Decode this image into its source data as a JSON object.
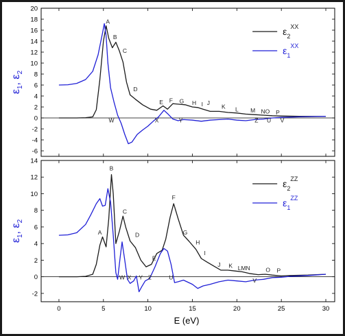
{
  "xlabel": "E (eV)",
  "x_ticks": [
    "0",
    "5",
    "10",
    "15",
    "20",
    "25",
    "30"
  ],
  "chart_data": [
    {
      "type": "line",
      "xlim": [
        -2,
        31
      ],
      "ylim": [
        -7,
        20
      ],
      "yticks": [
        -6,
        -4,
        -2,
        0,
        2,
        4,
        6,
        8,
        10,
        12,
        14,
        16,
        18,
        20
      ],
      "ylabel": "ε1, ε2",
      "grid": false,
      "legend_position": "top-right",
      "legend": [
        {
          "series": "eps2",
          "base": "ε",
          "sub": "2",
          "sup": "XX",
          "color": "#1a1a1a"
        },
        {
          "series": "eps1",
          "base": "ε",
          "sub": "1",
          "sup": "XX",
          "color": "#1f1fd6"
        }
      ],
      "series": [
        {
          "id": "eps2",
          "color": "#1a1a1a",
          "points": [
            [
              0,
              0
            ],
            [
              2,
              0
            ],
            [
              3,
              0.05
            ],
            [
              3.8,
              0.2
            ],
            [
              4.2,
              1.5
            ],
            [
              4.6,
              7
            ],
            [
              5,
              14
            ],
            [
              5.3,
              16.8
            ],
            [
              5.6,
              14.5
            ],
            [
              6,
              12.8
            ],
            [
              6.4,
              13.8
            ],
            [
              6.8,
              12.2
            ],
            [
              7.2,
              10.2
            ],
            [
              7.6,
              6.5
            ],
            [
              8,
              4.2
            ],
            [
              8.6,
              3.4
            ],
            [
              9.4,
              2.4
            ],
            [
              10.3,
              1.6
            ],
            [
              11,
              1.4
            ],
            [
              11.7,
              2.2
            ],
            [
              12.2,
              1.6
            ],
            [
              12.8,
              2.6
            ],
            [
              13.5,
              2.5
            ],
            [
              14.2,
              2.4
            ],
            [
              15,
              2
            ],
            [
              15.6,
              1.9
            ],
            [
              16.2,
              1.6
            ],
            [
              17,
              1.2
            ],
            [
              18,
              1.2
            ],
            [
              19,
              1.0
            ],
            [
              20,
              0.9
            ],
            [
              21,
              0.7
            ],
            [
              22,
              0.6
            ],
            [
              23,
              0.5
            ],
            [
              24,
              0.4
            ],
            [
              25,
              0.35
            ],
            [
              27,
              0.3
            ],
            [
              30,
              0.3
            ]
          ]
        },
        {
          "id": "eps1",
          "color": "#1f1fd6",
          "points": [
            [
              0,
              6
            ],
            [
              1,
              6.05
            ],
            [
              2,
              6.3
            ],
            [
              3,
              7
            ],
            [
              3.8,
              8.5
            ],
            [
              4.4,
              11.5
            ],
            [
              4.9,
              15.5
            ],
            [
              5.1,
              17.2
            ],
            [
              5.3,
              15
            ],
            [
              5.5,
              10
            ],
            [
              5.8,
              5.5
            ],
            [
              6.2,
              2.8
            ],
            [
              6.6,
              0.5
            ],
            [
              7,
              -1
            ],
            [
              7.4,
              -3
            ],
            [
              7.8,
              -4.7
            ],
            [
              8.2,
              -4.4
            ],
            [
              8.8,
              -3
            ],
            [
              9.4,
              -2.2
            ],
            [
              10,
              -1.5
            ],
            [
              10.6,
              -0.6
            ],
            [
              11.2,
              0.2
            ],
            [
              11.8,
              1.4
            ],
            [
              12.2,
              0.8
            ],
            [
              12.8,
              -0.2
            ],
            [
              13.4,
              -0.5
            ],
            [
              14,
              -0.3
            ],
            [
              15,
              -0.4
            ],
            [
              16,
              -0.6
            ],
            [
              17,
              -0.4
            ],
            [
              18,
              -0.3
            ],
            [
              19,
              -0.2
            ],
            [
              20,
              -0.4
            ],
            [
              21,
              -0.5
            ],
            [
              22,
              -0.3
            ],
            [
              23,
              -0.2
            ],
            [
              24,
              0
            ],
            [
              25,
              0.1
            ],
            [
              27,
              0.2
            ],
            [
              30,
              0.3
            ]
          ]
        }
      ],
      "annotations": [
        {
          "text": "A",
          "x": 5.5,
          "y": 17.2
        },
        {
          "text": "B",
          "x": 6.3,
          "y": 14.4
        },
        {
          "text": "C",
          "x": 7.4,
          "y": 11.9
        },
        {
          "text": "D",
          "x": 8.6,
          "y": 4.9
        },
        {
          "text": "E",
          "x": 11.5,
          "y": 2.5
        },
        {
          "text": "F",
          "x": 12.6,
          "y": 2.8
        },
        {
          "text": "G",
          "x": 13.8,
          "y": 2.7
        },
        {
          "text": "H",
          "x": 15.2,
          "y": 2.4
        },
        {
          "text": "I",
          "x": 16.1,
          "y": 2.1
        },
        {
          "text": "J",
          "x": 16.8,
          "y": 2.4
        },
        {
          "text": "K",
          "x": 18.5,
          "y": 1.7
        },
        {
          "text": "L",
          "x": 20,
          "y": 1.2
        },
        {
          "text": "M",
          "x": 21.8,
          "y": 1.0
        },
        {
          "text": "NO",
          "x": 23.2,
          "y": 0.8
        },
        {
          "text": "P",
          "x": 24.6,
          "y": 0.6
        },
        {
          "text": "W",
          "x": 5.9,
          "y": -0.8
        },
        {
          "text": "X",
          "x": 11,
          "y": -0.8
        },
        {
          "text": "Y",
          "x": 13.7,
          "y": -0.8
        },
        {
          "text": "Z",
          "x": 22.2,
          "y": -0.8
        },
        {
          "text": "U",
          "x": 23.6,
          "y": -0.8
        },
        {
          "text": "V",
          "x": 25.1,
          "y": -0.8
        }
      ]
    },
    {
      "type": "line",
      "xlim": [
        -2,
        31
      ],
      "ylim": [
        -3,
        14
      ],
      "yticks": [
        -2,
        0,
        2,
        4,
        6,
        8,
        10,
        12,
        14
      ],
      "ylabel": "ε1, ε2",
      "grid": false,
      "legend_position": "top-right",
      "legend": [
        {
          "series": "eps2",
          "base": "ε",
          "sub": "2",
          "sup": "ZZ",
          "color": "#1a1a1a"
        },
        {
          "series": "eps1",
          "base": "ε",
          "sub": "1",
          "sup": "ZZ",
          "color": "#1f1fd6"
        }
      ],
      "series": [
        {
          "id": "eps2",
          "color": "#1a1a1a",
          "points": [
            [
              0,
              0
            ],
            [
              2,
              0
            ],
            [
              3,
              0.05
            ],
            [
              3.8,
              0.3
            ],
            [
              4.2,
              1.5
            ],
            [
              4.6,
              3.8
            ],
            [
              4.9,
              4.8
            ],
            [
              5.3,
              3.6
            ],
            [
              5.6,
              7
            ],
            [
              5.9,
              12.3
            ],
            [
              6.1,
              10
            ],
            [
              6.4,
              4
            ],
            [
              6.8,
              5.5
            ],
            [
              7.2,
              7.3
            ],
            [
              7.5,
              6
            ],
            [
              8,
              4.3
            ],
            [
              8.6,
              3.5
            ],
            [
              9.2,
              2
            ],
            [
              9.8,
              1.2
            ],
            [
              10.4,
              1.5
            ],
            [
              11,
              2.8
            ],
            [
              11.6,
              3.2
            ],
            [
              12,
              4.5
            ],
            [
              12.5,
              7.2
            ],
            [
              12.9,
              8.8
            ],
            [
              13.4,
              7
            ],
            [
              14,
              5
            ],
            [
              14.6,
              4.3
            ],
            [
              15.4,
              3.3
            ],
            [
              16,
              2.2
            ],
            [
              16.6,
              1.8
            ],
            [
              17.4,
              1.3
            ],
            [
              18.2,
              0.8
            ],
            [
              19,
              0.8
            ],
            [
              19.8,
              0.7
            ],
            [
              20.6,
              0.6
            ],
            [
              21.4,
              0.4
            ],
            [
              22.4,
              0.25
            ],
            [
              23.2,
              0.3
            ],
            [
              24,
              0.2
            ],
            [
              25,
              0.1
            ],
            [
              26,
              0.15
            ],
            [
              28,
              0.2
            ],
            [
              30,
              0.3
            ]
          ]
        },
        {
          "id": "eps1",
          "color": "#1f1fd6",
          "points": [
            [
              0,
              5
            ],
            [
              1,
              5.05
            ],
            [
              2,
              5.3
            ],
            [
              3,
              6.3
            ],
            [
              3.6,
              7.5
            ],
            [
              4.2,
              8.8
            ],
            [
              4.6,
              9.4
            ],
            [
              4.9,
              8.5
            ],
            [
              5.2,
              8.6
            ],
            [
              5.5,
              10.6
            ],
            [
              5.8,
              9
            ],
            [
              6.1,
              5
            ],
            [
              6.4,
              0.5
            ],
            [
              6.6,
              -0.3
            ],
            [
              6.9,
              2.5
            ],
            [
              7.1,
              4.2
            ],
            [
              7.4,
              2
            ],
            [
              7.7,
              -0.3
            ],
            [
              8,
              -0.8
            ],
            [
              8.4,
              -0.5
            ],
            [
              8.7,
              0.1
            ],
            [
              9,
              -1.8
            ],
            [
              9.3,
              -1.2
            ],
            [
              9.7,
              -0.5
            ],
            [
              10.2,
              -0.2
            ],
            [
              10.8,
              1.2
            ],
            [
              11.4,
              2.8
            ],
            [
              11.8,
              3.4
            ],
            [
              12.2,
              3.1
            ],
            [
              12.6,
              1.5
            ],
            [
              13,
              -0.7
            ],
            [
              13.4,
              -0.6
            ],
            [
              14,
              -0.4
            ],
            [
              15,
              -0.9
            ],
            [
              15.6,
              -1.4
            ],
            [
              16.2,
              -1.1
            ],
            [
              17,
              -0.9
            ],
            [
              18,
              -0.6
            ],
            [
              19,
              -0.4
            ],
            [
              20,
              -0.5
            ],
            [
              21,
              -0.6
            ],
            [
              22,
              -0.4
            ],
            [
              23,
              -0.3
            ],
            [
              24,
              -0.1
            ],
            [
              25,
              -0.05
            ],
            [
              26,
              0.05
            ],
            [
              28,
              0.15
            ],
            [
              30,
              0.3
            ]
          ]
        }
      ],
      "annotations": [
        {
          "text": "A",
          "x": 4.6,
          "y": 5.1
        },
        {
          "text": "B",
          "x": 5.9,
          "y": 12.8
        },
        {
          "text": "C",
          "x": 7.4,
          "y": 7.6
        },
        {
          "text": "D",
          "x": 8.8,
          "y": 4.8
        },
        {
          "text": "E",
          "x": 10.7,
          "y": 2.0
        },
        {
          "text": "F",
          "x": 12.9,
          "y": 9.3
        },
        {
          "text": "G",
          "x": 14.2,
          "y": 5.1
        },
        {
          "text": "H",
          "x": 15.6,
          "y": 3.9
        },
        {
          "text": "I",
          "x": 16.4,
          "y": 2.6
        },
        {
          "text": "J",
          "x": 18,
          "y": 1.2
        },
        {
          "text": "K",
          "x": 19.3,
          "y": 1.1
        },
        {
          "text": "LMN",
          "x": 20.8,
          "y": 0.8
        },
        {
          "text": "O",
          "x": 23.5,
          "y": 0.6
        },
        {
          "text": "P",
          "x": 24.7,
          "y": 0.5
        },
        {
          "text": "W",
          "x": 7.1,
          "y": -0.3
        },
        {
          "text": "X",
          "x": 7.9,
          "y": -0.3
        },
        {
          "text": "Y",
          "x": 9.2,
          "y": -0.3
        },
        {
          "text": "Z",
          "x": 10.2,
          "y": -0.3
        },
        {
          "text": "U",
          "x": 12.6,
          "y": -0.3
        },
        {
          "text": "V",
          "x": 22,
          "y": -0.7
        }
      ]
    }
  ]
}
